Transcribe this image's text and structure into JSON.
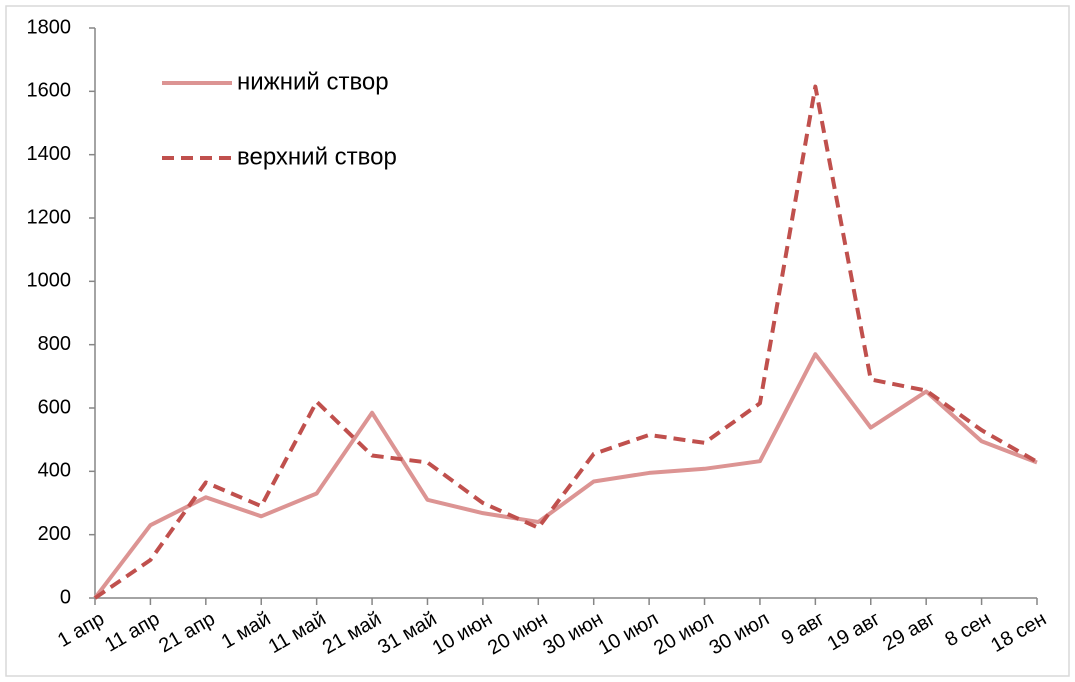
{
  "chart_data": {
    "type": "line",
    "categories": [
      "1 апр",
      "11 апр",
      "21 апр",
      "1 май",
      "11 май",
      "21 май",
      "31 май",
      "10 июн",
      "20 июн",
      "30 июн",
      "10 июл",
      "20 июл",
      "30 июл",
      "9 авг",
      "19 авг",
      "29 авг",
      "8 сен",
      "18 сен"
    ],
    "series": [
      {
        "name": "нижний створ",
        "color": "#dc9493",
        "dash": "solid",
        "values": [
          0,
          230,
          318,
          258,
          330,
          585,
          310,
          268,
          240,
          368,
          395,
          408,
          432,
          770,
          538,
          652,
          495,
          428
        ]
      },
      {
        "name": "верхний створ",
        "color": "#c0504d",
        "dash": "dashed",
        "values": [
          0,
          120,
          365,
          290,
          620,
          450,
          428,
          300,
          222,
          455,
          515,
          490,
          615,
          1615,
          690,
          655,
          530,
          430
        ]
      }
    ],
    "ylim": [
      0,
      1800
    ],
    "yticks": [
      0,
      200,
      400,
      600,
      800,
      1000,
      1200,
      1400,
      1600,
      1800
    ],
    "grid": false,
    "legend": "top-left"
  }
}
